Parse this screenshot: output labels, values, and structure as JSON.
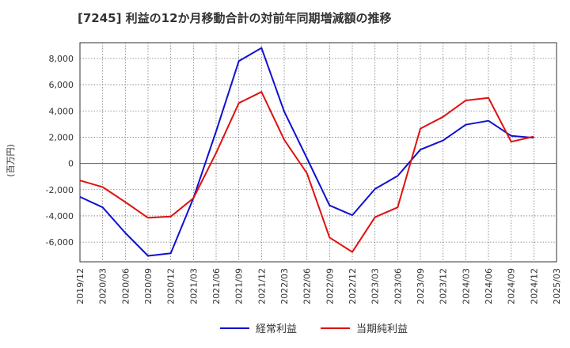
{
  "chart_data": {
    "type": "line",
    "title": "[7245]  利益の12か月移動合計の対前年同期増減額の推移",
    "ylabel": "(百万円)",
    "xlabel": "",
    "ylim": [
      -7500,
      9200
    ],
    "yticks": [
      -6000,
      -4000,
      -2000,
      0,
      2000,
      4000,
      6000,
      8000
    ],
    "ytick_labels": [
      "-6,000",
      "-4,000",
      "-2,000",
      "0",
      "2,000",
      "4,000",
      "6,000",
      "8,000"
    ],
    "categories": [
      "2019/12",
      "2020/03",
      "2020/06",
      "2020/09",
      "2020/12",
      "2021/03",
      "2021/06",
      "2021/09",
      "2021/12",
      "2022/03",
      "2022/06",
      "2022/09",
      "2022/12",
      "2023/03",
      "2023/06",
      "2023/09",
      "2023/12",
      "2024/03",
      "2024/06",
      "2024/09",
      "2024/12",
      "2025/03"
    ],
    "grid": true,
    "legend_position": "bottom",
    "series": [
      {
        "name": "経常利益",
        "color": "#1010d0",
        "values": [
          -2550,
          -3350,
          -5300,
          -7050,
          -6850,
          -2650,
          2450,
          7800,
          8800,
          3950,
          400,
          -3200,
          -3950,
          -1950,
          -950,
          1050,
          1750,
          2950,
          3250,
          2100,
          1950,
          null
        ]
      },
      {
        "name": "当期純利益",
        "color": "#e01010",
        "values": [
          -1300,
          -1800,
          -2950,
          -4150,
          -4050,
          -2650,
          800,
          4600,
          5450,
          1800,
          -750,
          -5650,
          -6750,
          -4100,
          -3350,
          2650,
          3550,
          4800,
          5000,
          1650,
          2050,
          null
        ]
      }
    ]
  }
}
